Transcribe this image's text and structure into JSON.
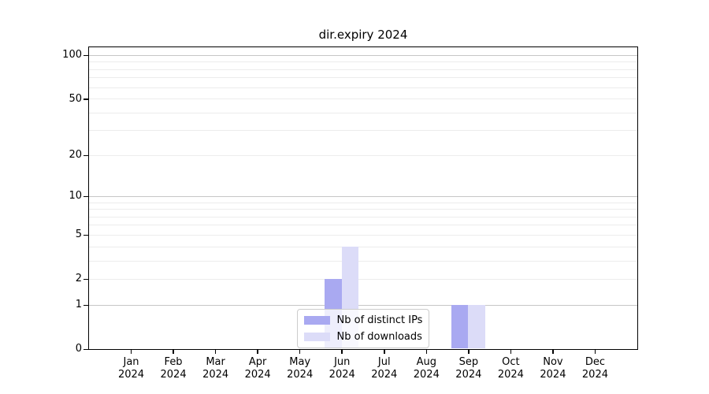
{
  "chart_data": {
    "type": "bar",
    "title": "dir.expiry 2024",
    "categories": [
      "Jan",
      "Feb",
      "Mar",
      "Apr",
      "May",
      "Jun",
      "Jul",
      "Aug",
      "Sep",
      "Oct",
      "Nov",
      "Dec"
    ],
    "category_year": "2024",
    "series": [
      {
        "name": "Nb of distinct IPs",
        "color": "#a9a9f1",
        "values": [
          0,
          0,
          0,
          0,
          0,
          2,
          0,
          0,
          1,
          0,
          0,
          0
        ]
      },
      {
        "name": "Nb of downloads",
        "color": "#dcdcf8",
        "values": [
          0,
          0,
          0,
          0,
          0,
          4,
          0,
          0,
          1,
          0,
          0,
          0
        ]
      }
    ],
    "y_axis": {
      "scale": "log1p",
      "ticks": [
        0,
        1,
        2,
        5,
        10,
        20,
        50,
        100
      ],
      "major_gridlines": [
        1,
        10,
        100
      ],
      "minor_gridlines": [
        2,
        3,
        4,
        5,
        6,
        7,
        8,
        9,
        20,
        30,
        40,
        50,
        60,
        70,
        80,
        90
      ],
      "ylim": [
        0,
        114
      ]
    },
    "grid": true,
    "legend_position": "lower center",
    "colors": {
      "spine": "#000000",
      "major_grid": "#c6c6c6",
      "minor_grid": "#ececec",
      "background": "#ffffff"
    }
  }
}
